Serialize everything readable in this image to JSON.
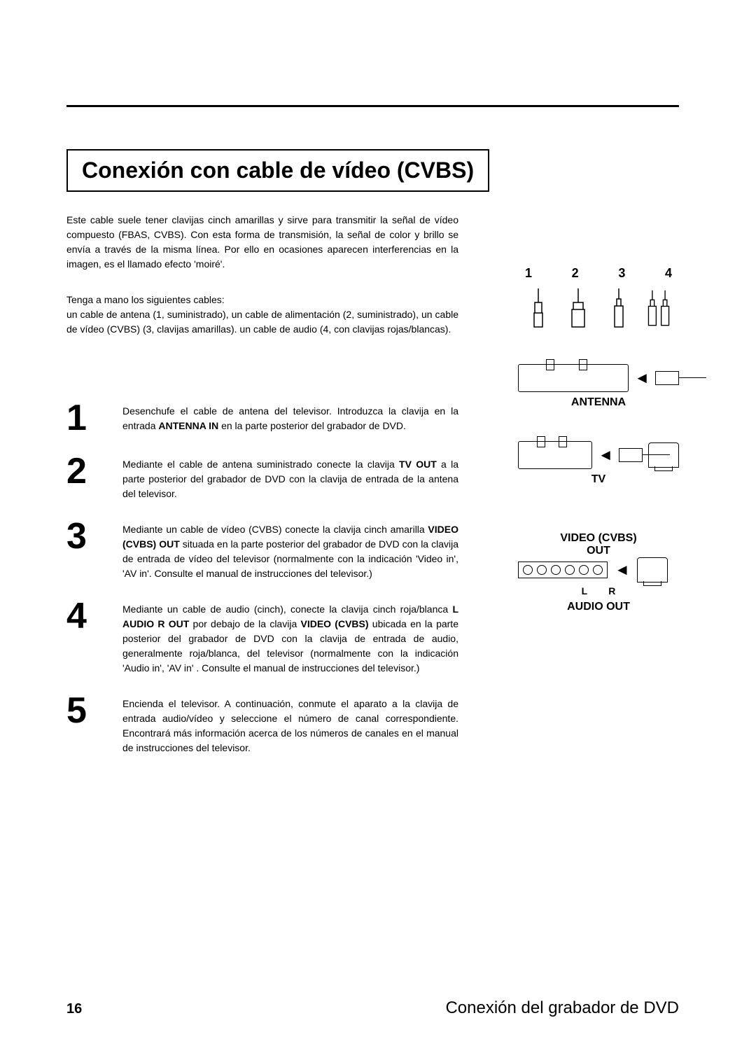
{
  "title": "Conexión con cable de vídeo (CVBS)",
  "intro": "Este cable suele tener clavijas cinch amarillas y sirve para transmitir la señal de vídeo compuesto (FBAS, CVBS). Con esta forma de transmisión, la señal de color y brillo se envía a través de la misma línea. Por ello en ocasiones aparecen interferencias en la imagen, es el llamado efecto 'moiré'.",
  "cables_intro": "Tenga a mano los siguientes cables:",
  "cables_detail": "un cable de antena (1, suministrado), un cable de alimentación (2, suministrado), un cable de vídeo (CVBS) (3, clavijas amarillas). un cable de audio (4, con clavijas rojas/blancas).",
  "cable_labels": [
    "1",
    "2",
    "3",
    "4"
  ],
  "antenna_label": "ANTENNA",
  "tv_label": "TV",
  "video_label_line1": "VIDEO (CVBS)",
  "video_label_line2": "OUT",
  "audio_label": "AUDIO OUT",
  "audio_L": "L",
  "audio_R": "R",
  "steps": [
    {
      "n": "1",
      "html": "Desenchufe el cable de antena del televisor. Introduzca la clavija en la entrada <b>ANTENNA IN</b> en la parte posterior del grabador de DVD."
    },
    {
      "n": "2",
      "html": "Mediante el cable de antena suministrado conecte la clavija <b>TV OUT</b> a la parte posterior del grabador de DVD con la clavija de entrada de la antena del televisor."
    },
    {
      "n": "3",
      "html": "Mediante un cable de vídeo (CVBS) conecte la clavija cinch amarilla <b>VIDEO (CVBS) OUT</b> situada en la parte posterior del grabador de DVD con la clavija de entrada de vídeo del televisor (normalmente con la indicación 'Video in', 'AV in'. Consulte el manual de instrucciones del televisor.)"
    },
    {
      "n": "4",
      "html": "Mediante un cable de audio (cinch), conecte la clavija cinch roja/blanca <b>L AUDIO R OUT</b> por debajo de la clavija <b>VIDEO (CVBS)</b> ubicada en la parte posterior del grabador de DVD con la clavija de entrada de audio, generalmente roja/blanca, del televisor (normalmente con la indicación 'Audio in', 'AV in' . Consulte el manual de instrucciones del televisor.)"
    },
    {
      "n": "5",
      "html": "Encienda el televisor. A continuación, conmute el aparato a la clavija de entrada audio/vídeo y seleccione el número de canal correspondiente. Encontrará más información acerca de los números de canales en el manual de instrucciones del televisor."
    }
  ],
  "page_number": "16",
  "footer_title": "Conexión del grabador de DVD"
}
